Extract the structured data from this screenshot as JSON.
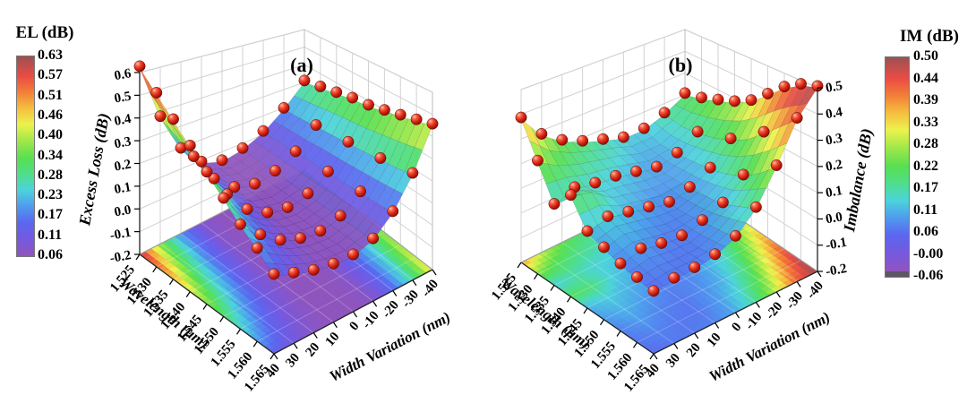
{
  "figure": {
    "background": "#ffffff",
    "wall_grid_color": "#d2d2d2",
    "edge_color": "#222222"
  },
  "point_style": {
    "highlight": "#ffc4b0",
    "mid": "#e8392a",
    "dark": "#7e0d05",
    "outline": "#5a0a04"
  },
  "colormap_stops": [
    {
      "t": 0.0,
      "c": "#8F55BE"
    },
    {
      "t": 0.09,
      "c": "#7459E0"
    },
    {
      "t": 0.17,
      "c": "#5B67F0"
    },
    {
      "t": 0.25,
      "c": "#4F9BEE"
    },
    {
      "t": 0.33,
      "c": "#4CD3DC"
    },
    {
      "t": 0.41,
      "c": "#4FDE8C"
    },
    {
      "t": 0.49,
      "c": "#58DF52"
    },
    {
      "t": 0.57,
      "c": "#9AE74A"
    },
    {
      "t": 0.66,
      "c": "#EDF24C"
    },
    {
      "t": 0.74,
      "c": "#F5BE40"
    },
    {
      "t": 0.82,
      "c": "#F28038"
    },
    {
      "t": 0.9,
      "c": "#EA4C44"
    },
    {
      "t": 1.0,
      "c": "#9B5152"
    }
  ],
  "chart_data": [
    {
      "type": "surface3d_with_floor_projection",
      "panel_label": "(a)",
      "xlabel": "Wavelength (μm)",
      "ylabel": "Width Variation (nm)",
      "zlabel": "Excess Loss (dB)",
      "x_ticks": [
        "1.525",
        "1.530",
        "1.535",
        "1.540",
        "1.545",
        "1.550",
        "1.555",
        "1.560",
        "1.565"
      ],
      "y_ticks": [
        "-40",
        "-30",
        "-20",
        "-10",
        "0",
        "10",
        "20",
        "30",
        "40"
      ],
      "z_ticks": [
        "0.6",
        "0.5",
        "0.4",
        "0.3",
        "0.2",
        "0.1",
        "0.0",
        "-0.1",
        "-0.2"
      ],
      "zlim": [
        -0.2,
        0.6
      ],
      "x_values": [
        1.525,
        1.53,
        1.535,
        1.54,
        1.545,
        1.55,
        1.555,
        1.56,
        1.565
      ],
      "y_values": [
        -40,
        -30,
        -20,
        -10,
        0,
        10,
        20,
        30,
        40
      ],
      "z_values": [
        [
          0.3,
          0.19,
          0.11,
          0.066,
          0.05,
          0.086,
          0.19,
          0.37,
          0.62
        ],
        [
          0.32,
          0.2,
          0.12,
          0.067,
          0.05,
          0.082,
          0.18,
          0.34,
          0.56
        ],
        [
          0.34,
          0.21,
          0.12,
          0.068,
          0.05,
          0.078,
          0.16,
          0.3,
          0.5
        ],
        [
          0.36,
          0.22,
          0.13,
          0.069,
          0.05,
          0.074,
          0.15,
          0.27,
          0.44
        ],
        [
          0.37,
          0.23,
          0.13,
          0.07,
          0.05,
          0.071,
          0.13,
          0.24,
          0.38
        ],
        [
          0.39,
          0.24,
          0.135,
          0.071,
          0.05,
          0.067,
          0.12,
          0.2,
          0.32
        ],
        [
          0.41,
          0.25,
          0.14,
          0.073,
          0.05,
          0.063,
          0.1,
          0.17,
          0.26
        ],
        [
          0.43,
          0.26,
          0.145,
          0.074,
          0.05,
          0.06,
          0.09,
          0.14,
          0.21
        ],
        [
          0.45,
          0.275,
          0.15,
          0.075,
          0.05,
          0.056,
          0.075,
          0.11,
          0.15
        ]
      ],
      "colorbar": {
        "title": "EL (dB)",
        "tick_labels": [
          "0.63",
          "0.57",
          "0.51",
          "0.46",
          "0.40",
          "0.34",
          "0.28",
          "0.23",
          "0.17",
          "0.11",
          "0.06"
        ],
        "range": [
          0.06,
          0.63
        ],
        "cap_color": null
      }
    },
    {
      "type": "surface3d_with_floor_projection",
      "panel_label": "(b)",
      "xlabel": "Wavelength (μm)",
      "ylabel": "Width Variation (nm)",
      "zlabel": "Imbalance (dB)",
      "x_ticks": [
        "1.525",
        "1.530",
        "1.535",
        "1.540",
        "1.545",
        "1.550",
        "1.555",
        "1.560",
        "1.565"
      ],
      "y_ticks": [
        "-40",
        "-30",
        "-20",
        "-10",
        "0",
        "10",
        "20",
        "30",
        "40"
      ],
      "z_ticks": [
        "0.5",
        "0.4",
        "0.3",
        "0.2",
        "0.1",
        "0.0",
        "-0.1",
        "-0.2"
      ],
      "zlim": [
        -0.2,
        0.5
      ],
      "x_values": [
        1.525,
        1.53,
        1.535,
        1.54,
        1.545,
        1.55,
        1.555,
        1.56,
        1.565
      ],
      "y_values": [
        -40,
        -30,
        -20,
        -10,
        0,
        10,
        20,
        30,
        40
      ],
      "z_values": [
        [
          0.2,
          0.15,
          0.12,
          0.12,
          0.15,
          0.18,
          0.22,
          0.28,
          0.38
        ],
        [
          0.22,
          0.14,
          0.1,
          0.1,
          0.13,
          0.15,
          0.17,
          0.2,
          0.25
        ],
        [
          0.25,
          0.15,
          0.1,
          0.08,
          0.1,
          0.12,
          0.13,
          0.15,
          0.12
        ],
        [
          0.28,
          0.17,
          0.11,
          0.08,
          0.08,
          0.1,
          0.12,
          0.18,
          0.2
        ],
        [
          0.32,
          0.2,
          0.12,
          0.08,
          0.06,
          0.08,
          0.1,
          0.12,
          0.1
        ],
        [
          0.38,
          0.24,
          0.14,
          0.09,
          0.06,
          0.06,
          0.08,
          0.1,
          0.08
        ],
        [
          0.44,
          0.3,
          0.17,
          0.1,
          0.07,
          0.05,
          0.06,
          0.08,
          0.06
        ],
        [
          0.48,
          0.36,
          0.22,
          0.13,
          0.08,
          0.05,
          0.05,
          0.06,
          0.05
        ],
        [
          0.5,
          0.42,
          0.28,
          0.16,
          0.09,
          0.06,
          0.05,
          0.05,
          0.04
        ]
      ],
      "colorbar": {
        "title": "IM (dB)",
        "tick_labels": [
          "0.50",
          "0.44",
          "0.39",
          "0.33",
          "0.28",
          "0.22",
          "0.17",
          "0.11",
          "0.06",
          "-0.00",
          "-0.06"
        ],
        "range": [
          -0.06,
          0.5
        ],
        "cap_color": "#5E5565"
      }
    }
  ]
}
